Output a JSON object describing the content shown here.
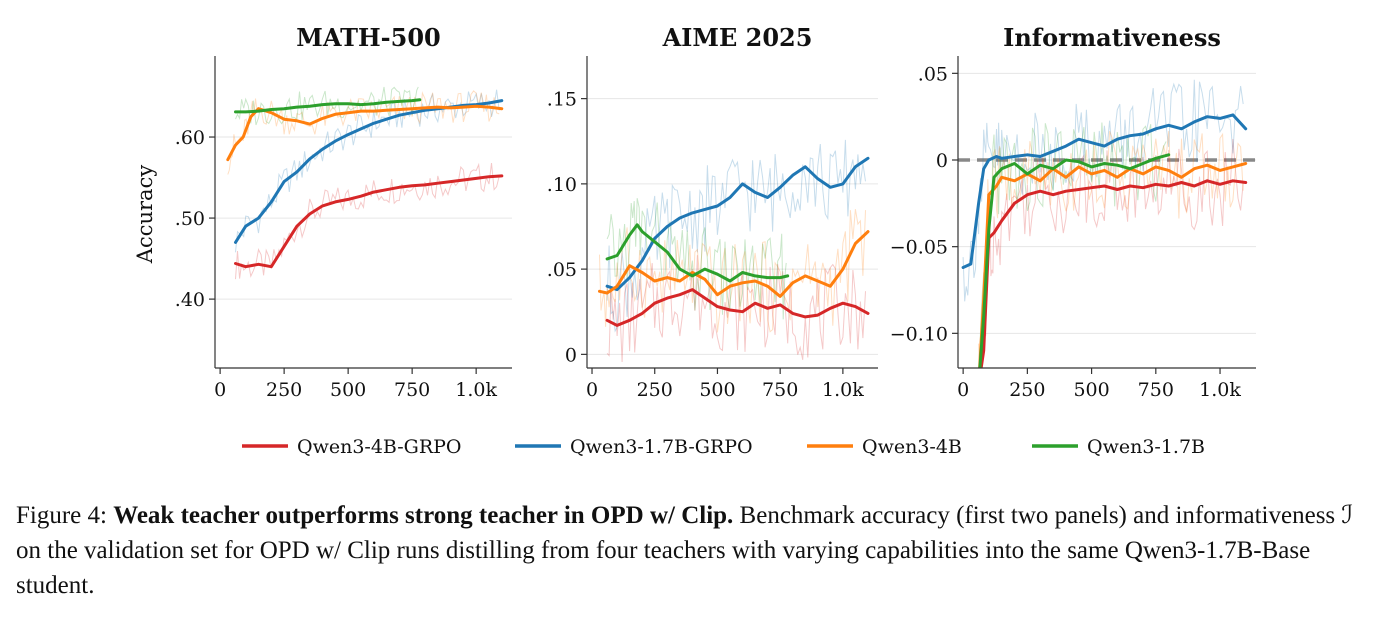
{
  "colors": {
    "Qwen3-4B-GRPO": "#d62728",
    "Qwen3-1.7B-GRPO": "#1f77b4",
    "Qwen3-4B": "#ff7f0e",
    "Qwen3-1.7B": "#2ca02c",
    "zero_line": "#888888"
  },
  "legend": [
    "Qwen3-4B-GRPO",
    "Qwen3-1.7B-GRPO",
    "Qwen3-4B",
    "Qwen3-1.7B"
  ],
  "caption": {
    "prefix": "Figure 4: ",
    "bold": "Weak teacher outperforms strong teacher in OPD w/ Clip.",
    "rest": " Benchmark accuracy (first two panels) and informativeness ℐ on the validation set for OPD w/ Clip runs distilling from four teachers with varying capabilities into the same Qwen3-1.7B-Base student."
  },
  "chart_data": [
    {
      "type": "line",
      "title": "MATH-500",
      "ylabel": "Accuracy",
      "xlabel": "",
      "xlim": [
        -20,
        1140
      ],
      "ylim": [
        0.315,
        0.7
      ],
      "xticks": [
        0,
        250,
        500,
        750,
        1000
      ],
      "xticklabels": [
        "0",
        "250",
        "500",
        "750",
        "1.0k"
      ],
      "yticks": [
        0.4,
        0.5,
        0.6
      ],
      "yticklabels": [
        ".40",
        ".50",
        ".60"
      ],
      "grid": true,
      "series": [
        {
          "name": "Qwen3-4B-GRPO",
          "x": [
            60,
            100,
            150,
            200,
            250,
            300,
            350,
            400,
            450,
            500,
            550,
            600,
            650,
            700,
            750,
            800,
            850,
            900,
            950,
            1000,
            1050,
            1100
          ],
          "y": [
            0.444,
            0.44,
            0.443,
            0.44,
            0.465,
            0.49,
            0.505,
            0.515,
            0.52,
            0.523,
            0.527,
            0.532,
            0.535,
            0.538,
            0.54,
            0.541,
            0.543,
            0.545,
            0.547,
            0.549,
            0.551,
            0.552
          ]
        },
        {
          "name": "Qwen3-1.7B-GRPO",
          "x": [
            60,
            100,
            150,
            200,
            250,
            300,
            350,
            400,
            450,
            500,
            550,
            600,
            650,
            700,
            750,
            800,
            850,
            900,
            950,
            1000,
            1050,
            1100
          ],
          "y": [
            0.47,
            0.49,
            0.5,
            0.52,
            0.545,
            0.557,
            0.573,
            0.585,
            0.595,
            0.603,
            0.61,
            0.617,
            0.622,
            0.627,
            0.63,
            0.633,
            0.635,
            0.637,
            0.639,
            0.64,
            0.642,
            0.645
          ]
        },
        {
          "name": "Qwen3-4B",
          "x": [
            30,
            60,
            90,
            120,
            150,
            200,
            250,
            300,
            350,
            400,
            450,
            500,
            550,
            600,
            650,
            700,
            750,
            800,
            850,
            900,
            950,
            1000,
            1050,
            1100
          ],
          "y": [
            0.572,
            0.59,
            0.6,
            0.625,
            0.635,
            0.63,
            0.622,
            0.62,
            0.616,
            0.623,
            0.628,
            0.63,
            0.632,
            0.632,
            0.633,
            0.634,
            0.635,
            0.636,
            0.637,
            0.636,
            0.637,
            0.638,
            0.637,
            0.635
          ]
        },
        {
          "name": "Qwen3-1.7B",
          "x": [
            60,
            100,
            150,
            200,
            250,
            300,
            350,
            400,
            450,
            500,
            550,
            600,
            650,
            700,
            750,
            780
          ],
          "y": [
            0.631,
            0.631,
            0.632,
            0.634,
            0.635,
            0.637,
            0.638,
            0.64,
            0.641,
            0.641,
            0.64,
            0.641,
            0.643,
            0.644,
            0.645,
            0.646
          ]
        }
      ]
    },
    {
      "type": "line",
      "title": "AIME 2025",
      "ylabel": "",
      "xlabel": "",
      "xlim": [
        -20,
        1140
      ],
      "ylim": [
        -0.008,
        0.175
      ],
      "xticks": [
        0,
        250,
        500,
        750,
        1000
      ],
      "xticklabels": [
        "0",
        "250",
        "500",
        "750",
        "1.0k"
      ],
      "yticks": [
        0,
        0.05,
        0.1,
        0.15
      ],
      "yticklabels": [
        "0",
        ".05",
        ".10",
        ".15"
      ],
      "grid": true,
      "series": [
        {
          "name": "Qwen3-4B-GRPO",
          "x": [
            60,
            100,
            150,
            200,
            250,
            300,
            350,
            400,
            450,
            500,
            550,
            600,
            650,
            700,
            750,
            800,
            850,
            900,
            950,
            1000,
            1050,
            1100
          ],
          "y": [
            0.02,
            0.017,
            0.02,
            0.024,
            0.03,
            0.033,
            0.035,
            0.038,
            0.033,
            0.028,
            0.026,
            0.025,
            0.03,
            0.027,
            0.029,
            0.024,
            0.022,
            0.023,
            0.027,
            0.03,
            0.028,
            0.024
          ]
        },
        {
          "name": "Qwen3-1.7B-GRPO",
          "x": [
            60,
            100,
            150,
            200,
            250,
            300,
            350,
            400,
            450,
            500,
            550,
            600,
            650,
            700,
            750,
            800,
            850,
            900,
            950,
            1000,
            1050,
            1100
          ],
          "y": [
            0.04,
            0.038,
            0.045,
            0.055,
            0.068,
            0.075,
            0.08,
            0.083,
            0.085,
            0.087,
            0.092,
            0.1,
            0.095,
            0.092,
            0.098,
            0.105,
            0.11,
            0.103,
            0.098,
            0.1,
            0.11,
            0.115
          ]
        },
        {
          "name": "Qwen3-4B",
          "x": [
            30,
            60,
            100,
            150,
            200,
            250,
            300,
            350,
            400,
            450,
            500,
            550,
            600,
            650,
            700,
            750,
            800,
            850,
            900,
            950,
            1000,
            1050,
            1100
          ],
          "y": [
            0.037,
            0.036,
            0.04,
            0.052,
            0.048,
            0.043,
            0.045,
            0.043,
            0.048,
            0.044,
            0.035,
            0.04,
            0.042,
            0.043,
            0.04,
            0.034,
            0.042,
            0.046,
            0.043,
            0.04,
            0.05,
            0.065,
            0.072
          ]
        },
        {
          "name": "Qwen3-1.7B",
          "x": [
            60,
            100,
            150,
            180,
            200,
            250,
            300,
            350,
            400,
            450,
            500,
            550,
            600,
            650,
            700,
            750,
            780
          ],
          "y": [
            0.056,
            0.058,
            0.07,
            0.076,
            0.072,
            0.066,
            0.06,
            0.05,
            0.046,
            0.05,
            0.047,
            0.043,
            0.048,
            0.046,
            0.045,
            0.045,
            0.046
          ]
        }
      ]
    },
    {
      "type": "line",
      "title": "Informativeness",
      "ylabel": "",
      "xlabel": "",
      "xlim": [
        -20,
        1140
      ],
      "ylim": [
        -0.12,
        0.06
      ],
      "xticks": [
        0,
        250,
        500,
        750,
        1000
      ],
      "xticklabels": [
        "0",
        "250",
        "500",
        "750",
        "1.0k"
      ],
      "yticks": [
        -0.1,
        -0.05,
        0,
        0.05
      ],
      "yticklabels": [
        "−0.10",
        "−0.05",
        "0",
        ".05"
      ],
      "grid": true,
      "reference_line": {
        "y": 0,
        "style": "dashed"
      },
      "series": [
        {
          "name": "Qwen3-4B-GRPO",
          "x": [
            60,
            80,
            100,
            120,
            150,
            200,
            250,
            300,
            350,
            400,
            450,
            500,
            550,
            600,
            650,
            700,
            750,
            800,
            850,
            900,
            950,
            1000,
            1050,
            1100
          ],
          "y": [
            -0.13,
            -0.11,
            -0.045,
            -0.042,
            -0.035,
            -0.025,
            -0.02,
            -0.018,
            -0.02,
            -0.018,
            -0.017,
            -0.016,
            -0.015,
            -0.017,
            -0.015,
            -0.016,
            -0.014,
            -0.015,
            -0.013,
            -0.015,
            -0.012,
            -0.014,
            -0.012,
            -0.013
          ]
        },
        {
          "name": "Qwen3-1.7B-GRPO",
          "x": [
            0,
            30,
            60,
            80,
            100,
            130,
            150,
            200,
            250,
            300,
            350,
            400,
            450,
            500,
            550,
            600,
            650,
            700,
            750,
            800,
            850,
            900,
            950,
            1000,
            1050,
            1100
          ],
          "y": [
            -0.062,
            -0.06,
            -0.025,
            -0.005,
            0.0,
            0.002,
            0.001,
            0.002,
            0.003,
            0.002,
            0.005,
            0.008,
            0.012,
            0.01,
            0.008,
            0.012,
            0.014,
            0.015,
            0.018,
            0.02,
            0.018,
            0.022,
            0.025,
            0.024,
            0.026,
            0.018
          ]
        },
        {
          "name": "Qwen3-4B",
          "x": [
            60,
            80,
            100,
            130,
            150,
            200,
            250,
            300,
            350,
            400,
            450,
            500,
            550,
            600,
            650,
            700,
            750,
            800,
            850,
            900,
            950,
            1000,
            1050,
            1100
          ],
          "y": [
            -0.13,
            -0.08,
            -0.02,
            -0.015,
            -0.01,
            -0.012,
            -0.008,
            -0.012,
            -0.005,
            -0.01,
            -0.004,
            -0.008,
            -0.006,
            -0.01,
            -0.005,
            -0.008,
            -0.004,
            -0.006,
            -0.01,
            -0.005,
            -0.003,
            -0.006,
            -0.004,
            -0.002
          ]
        },
        {
          "name": "Qwen3-1.7B",
          "x": [
            60,
            80,
            100,
            120,
            150,
            200,
            250,
            300,
            350,
            400,
            450,
            500,
            550,
            600,
            650,
            700,
            750,
            800
          ],
          "y": [
            -0.13,
            -0.09,
            -0.04,
            -0.01,
            -0.005,
            -0.002,
            -0.008,
            -0.003,
            -0.005,
            0.0,
            -0.001,
            -0.004,
            -0.002,
            -0.003,
            -0.005,
            -0.002,
            0.001,
            0.003
          ]
        }
      ]
    }
  ]
}
